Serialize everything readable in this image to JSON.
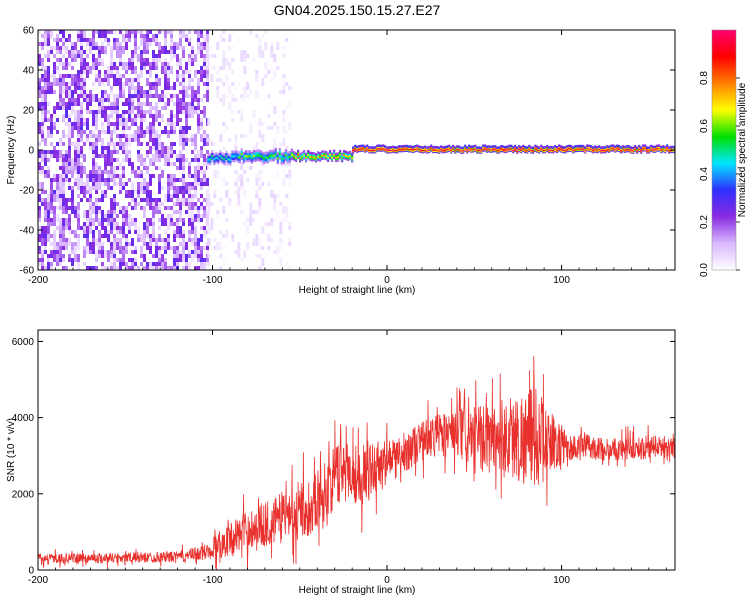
{
  "title": "GN04.2025.150.15.27.E27",
  "chart_data": [
    {
      "type": "heatmap",
      "xlabel": "Height of straight line (km)",
      "ylabel": "Frequency (Hz)",
      "xlim": [
        -200,
        165
      ],
      "ylim": [
        -60,
        60
      ],
      "xticks": [
        "-200",
        "-100",
        "0",
        "100"
      ],
      "xtick_values": [
        -200,
        -100,
        0,
        100
      ],
      "yticks": [
        "60",
        "40",
        "20",
        "0",
        "-20",
        "-40",
        "-60"
      ],
      "ytick_values": [
        60,
        40,
        20,
        0,
        -20,
        -40,
        -60
      ],
      "grid": false,
      "colorbar": {
        "label": "Normalized spectral amplitude",
        "range": [
          0,
          1
        ],
        "ticks": [
          "0.0",
          "0.2",
          "0.4",
          "0.6",
          "0.8"
        ],
        "tick_values": [
          0,
          0.2,
          0.4,
          0.6,
          0.8
        ],
        "colors": [
          "#ffffff",
          "#d9b8ff",
          "#8a2be2",
          "#3030ff",
          "#00e5ff",
          "#00e000",
          "#ffff00",
          "#ff8000",
          "#ff0000",
          "#ff0070"
        ]
      },
      "regions": [
        {
          "x": [
            -200,
            -103
          ],
          "freq": [
            -60,
            60
          ],
          "level": 0.2,
          "note": ""
        },
        {
          "x": [
            -103,
            -55
          ],
          "freq": [
            -60,
            60
          ],
          "level": 0.05,
          "note": ""
        }
      ],
      "ridge": {
        "freq": 0,
        "segments": [
          {
            "x": [
              -103,
              -85
            ],
            "freq_center": -4,
            "width": 4,
            "level": 0.45
          },
          {
            "x": [
              -85,
              -55
            ],
            "freq_center": -3,
            "width": 4,
            "level": 0.55
          },
          {
            "x": [
              -55,
              -20
            ],
            "freq_center": -3,
            "width": 3,
            "level": 0.7
          },
          {
            "x": [
              -20,
              165
            ],
            "freq_center": 0.5,
            "width": 2,
            "level": 0.95
          }
        ]
      }
    },
    {
      "type": "line",
      "xlabel": "Height of straight line (km)",
      "ylabel": "SNR (10 * v/v)",
      "xlim": [
        -200,
        165
      ],
      "ylim": [
        0,
        6300
      ],
      "xticks": [
        "-200",
        "-100",
        "0",
        "100"
      ],
      "xtick_values": [
        -200,
        -100,
        0,
        100
      ],
      "yticks": [
        "0",
        "2000",
        "4000",
        "6000"
      ],
      "ytick_values": [
        0,
        2000,
        4000,
        6000
      ],
      "grid": false,
      "color": "#e8302c",
      "series": [
        {
          "x": [
            -200,
            -180,
            -160,
            -140,
            -120,
            -105,
            -95,
            -85,
            -75,
            -65,
            -55,
            -45,
            -35,
            -25,
            -15,
            -5,
            5,
            15,
            25,
            35,
            45,
            55,
            65,
            75,
            85,
            95,
            105,
            115,
            125,
            135,
            145,
            155,
            165
          ],
          "y": [
            300,
            310,
            320,
            330,
            350,
            450,
            700,
            950,
            1150,
            1250,
            1550,
            1650,
            2100,
            2700,
            2450,
            2800,
            2900,
            3250,
            3500,
            3600,
            3500,
            3450,
            3500,
            3450,
            3500,
            3350,
            3200,
            3250,
            3150,
            3200,
            3200,
            3250,
            3200
          ],
          "spread": [
            150,
            160,
            170,
            170,
            180,
            250,
            500,
            600,
            700,
            800,
            900,
            950,
            1000,
            1100,
            1000,
            800,
            700,
            650,
            700,
            800,
            900,
            1100,
            1300,
            1500,
            1700,
            900,
            450,
            400,
            380,
            380,
            380,
            400,
            380
          ]
        }
      ]
    }
  ]
}
